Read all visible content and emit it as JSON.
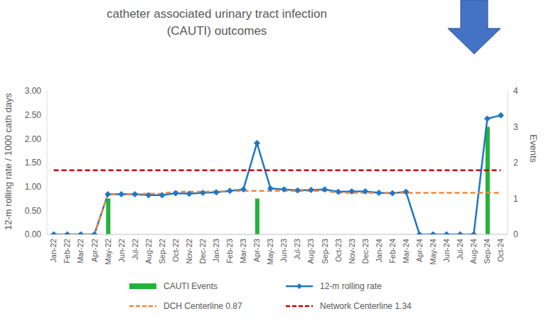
{
  "chart_data": {
    "type": "combo",
    "title": "catheter associated urinary tract infection (CAUTI) outcomes",
    "y_label": "12-m rolling rate / 1000 cath days",
    "y2_label": "Events",
    "categories": [
      "Jan-22",
      "Feb-22",
      "Mar-22",
      "Apr-22",
      "May-22",
      "Jun-22",
      "Jul-22",
      "Aug-22",
      "Sep-22",
      "Oct-22",
      "Nov-22",
      "Dec-22",
      "Jan-23",
      "Feb-23",
      "Mar-23",
      "Apr-23",
      "May-23",
      "Jun-23",
      "Jul-23",
      "Aug-23",
      "Sep-23",
      "Oct-23",
      "Nov-23",
      "Dec-23",
      "Jan-24",
      "Feb-24",
      "Mar-24",
      "Apr-24",
      "May-24",
      "Jun-24",
      "Jul-24",
      "Aug-24",
      "Sep-24",
      "Oct-24"
    ],
    "series": [
      {
        "name": "CAUTI Events",
        "type": "bar",
        "axis": "y2",
        "color": "#22b33a",
        "values": [
          0,
          0,
          0,
          0,
          1,
          0,
          0,
          0,
          0,
          0,
          0,
          0,
          0,
          0,
          0,
          1,
          0,
          0,
          0,
          0,
          0,
          0,
          0,
          0,
          0,
          0,
          0,
          0,
          0,
          0,
          0,
          0,
          3,
          0
        ]
      },
      {
        "name": "12-m rolling rate",
        "type": "line",
        "color": "#1f77c8",
        "marker": "diamond",
        "line_style": "solid",
        "values": [
          0,
          0,
          0,
          0,
          0.84,
          0.84,
          0.84,
          0.82,
          0.82,
          0.86,
          0.85,
          0.87,
          0.88,
          0.91,
          0.94,
          1.91,
          0.96,
          0.94,
          0.92,
          0.93,
          0.94,
          0.89,
          0.9,
          0.9,
          0.87,
          0.86,
          0.89,
          0,
          0,
          0,
          0,
          0,
          2.42,
          2.49
        ]
      },
      {
        "name": "DCH Centerline 0.87",
        "type": "line",
        "color": "#f0883a",
        "line_style": "dashed",
        "values": [
          0,
          0,
          0,
          0,
          0.84,
          0.84,
          0.84,
          0.85,
          0.85,
          0.89,
          0.89,
          0.89,
          0.9,
          0.9,
          0.91,
          0.91,
          0.91,
          0.91,
          0.91,
          0.91,
          0.91,
          0.87,
          0.87,
          0.87,
          0.87,
          0.87,
          0.87,
          0.87,
          0.87,
          0.87,
          0.87,
          0.87,
          0.87,
          0.87
        ]
      },
      {
        "name": "Network Centerline 1.34",
        "type": "line",
        "color": "#c00000",
        "line_style": "dashed",
        "values": [
          1.34,
          1.34,
          1.34,
          1.34,
          1.34,
          1.34,
          1.34,
          1.34,
          1.34,
          1.34,
          1.34,
          1.34,
          1.34,
          1.34,
          1.34,
          1.34,
          1.34,
          1.34,
          1.34,
          1.34,
          1.34,
          1.34,
          1.34,
          1.34,
          1.34,
          1.34,
          1.34,
          1.34,
          1.34,
          1.34,
          1.34,
          1.34,
          1.34,
          1.34
        ]
      }
    ],
    "ylim": [
      0,
      3
    ],
    "yticks": [
      {
        "value": 0,
        "label": "0.00"
      },
      {
        "value": 0.5,
        "label": "0.50"
      },
      {
        "value": 1,
        "label": "1.00"
      },
      {
        "value": 1.5,
        "label": "1.50"
      },
      {
        "value": 2,
        "label": "2.00"
      },
      {
        "value": 2.5,
        "label": "2.50"
      },
      {
        "value": 3,
        "label": "3.00"
      }
    ],
    "y2lim": [
      0,
      4
    ],
    "y2ticks": [
      0,
      1,
      2,
      3,
      4
    ],
    "grid": false,
    "legend": "bottom"
  }
}
